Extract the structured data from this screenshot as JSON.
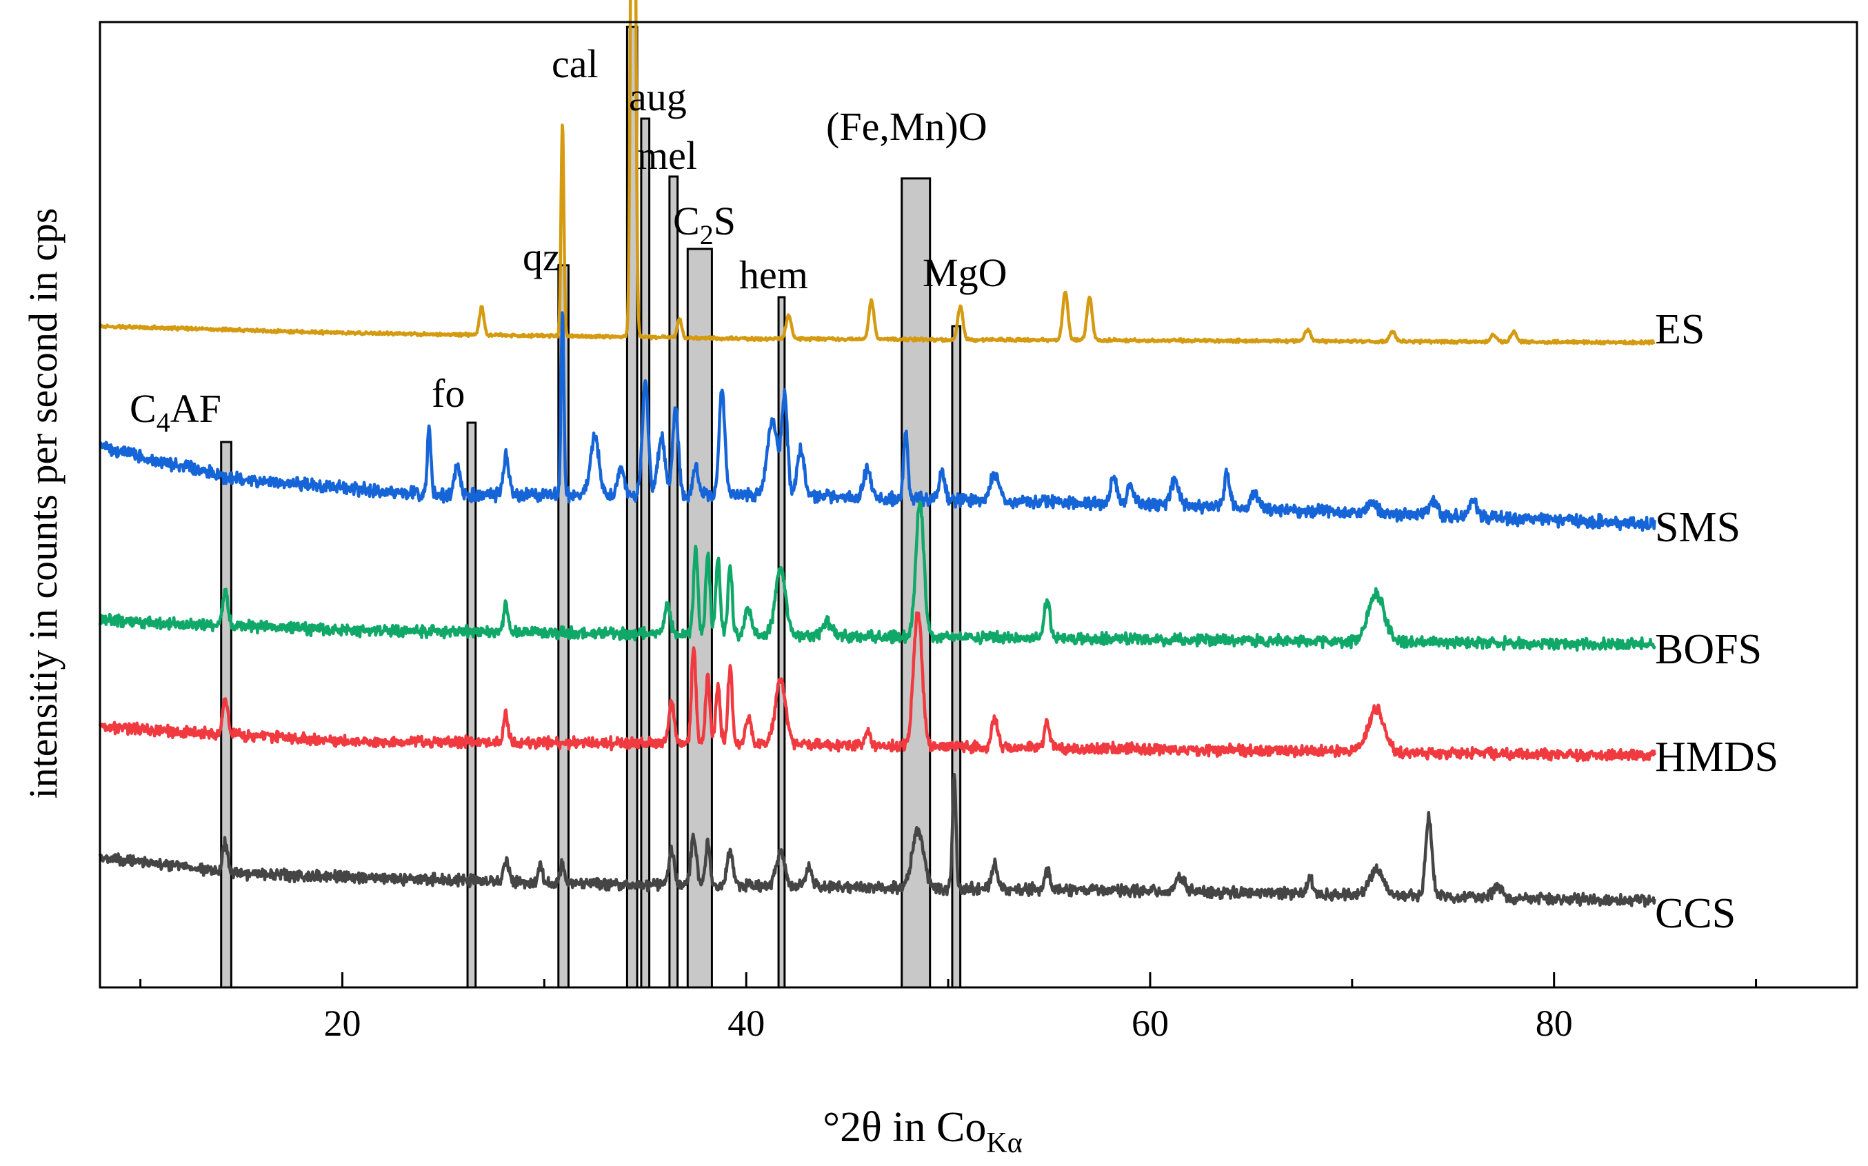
{
  "chart_data": {
    "type": "line",
    "xlabel_main": "°2θ in Co",
    "xlabel_sub": "Kα",
    "ylabel": "intensitiy in counts per second in cps",
    "xlim": [
      8,
      95
    ],
    "x_ticks": [
      20,
      40,
      60,
      80
    ],
    "x_tick_labels": [
      "20",
      "40",
      "60",
      "80"
    ],
    "minor_tick_step": 10,
    "y_axis_ticks": false,
    "series": [
      {
        "name": "ES",
        "color": "#d49a10",
        "offset": 0.66,
        "noise": 0.002,
        "seed": 7,
        "baseline": [
          [
            8,
            0.025
          ],
          [
            20,
            0.018
          ],
          [
            40,
            0.012
          ],
          [
            85,
            0.008
          ]
        ],
        "peaks": [
          [
            26.9,
            0.03,
            0.15
          ],
          [
            30.9,
            0.22,
            0.1
          ],
          [
            34.4,
            0.9,
            0.14
          ],
          [
            36.7,
            0.02,
            0.15
          ],
          [
            42.1,
            0.025,
            0.18
          ],
          [
            46.2,
            0.04,
            0.18
          ],
          [
            50.6,
            0.035,
            0.18
          ],
          [
            55.8,
            0.05,
            0.18
          ],
          [
            57.0,
            0.045,
            0.18
          ],
          [
            67.8,
            0.012,
            0.2
          ],
          [
            72.0,
            0.01,
            0.2
          ],
          [
            77.0,
            0.008,
            0.2
          ],
          [
            78.0,
            0.01,
            0.2
          ]
        ]
      },
      {
        "name": "SMS",
        "color": "#1565d8",
        "offset": 0.48,
        "noise": 0.008,
        "seed": 3,
        "baseline": [
          [
            8,
            0.08
          ],
          [
            15,
            0.045
          ],
          [
            25,
            0.03
          ],
          [
            40,
            0.03
          ],
          [
            60,
            0.02
          ],
          [
            85,
            0.0
          ]
        ],
        "peaks": [
          [
            24.3,
            0.07,
            0.12
          ],
          [
            25.7,
            0.03,
            0.2
          ],
          [
            28.1,
            0.04,
            0.2
          ],
          [
            30.9,
            0.19,
            0.1
          ],
          [
            32.5,
            0.06,
            0.3
          ],
          [
            33.8,
            0.03,
            0.2
          ],
          [
            35.0,
            0.12,
            0.2
          ],
          [
            35.8,
            0.06,
            0.25
          ],
          [
            36.5,
            0.09,
            0.2
          ],
          [
            37.5,
            0.03,
            0.2
          ],
          [
            38.8,
            0.11,
            0.2
          ],
          [
            41.3,
            0.08,
            0.35
          ],
          [
            41.9,
            0.1,
            0.2
          ],
          [
            42.7,
            0.05,
            0.25
          ],
          [
            46.0,
            0.03,
            0.25
          ],
          [
            47.9,
            0.07,
            0.15
          ],
          [
            49.7,
            0.03,
            0.2
          ],
          [
            52.3,
            0.03,
            0.3
          ],
          [
            58.2,
            0.03,
            0.2
          ],
          [
            59.0,
            0.02,
            0.2
          ],
          [
            61.2,
            0.025,
            0.3
          ],
          [
            63.8,
            0.035,
            0.2
          ],
          [
            65.2,
            0.015,
            0.3
          ],
          [
            71.0,
            0.01,
            0.3
          ],
          [
            74.0,
            0.015,
            0.3
          ],
          [
            76.0,
            0.015,
            0.3
          ]
        ]
      },
      {
        "name": "BOFS",
        "color": "#10a868",
        "offset": 0.355,
        "noise": 0.007,
        "seed": 11,
        "baseline": [
          [
            8,
            0.025
          ],
          [
            20,
            0.015
          ],
          [
            40,
            0.01
          ],
          [
            85,
            0.0
          ]
        ],
        "peaks": [
          [
            14.2,
            0.035,
            0.18
          ],
          [
            28.1,
            0.03,
            0.15
          ],
          [
            36.1,
            0.03,
            0.2
          ],
          [
            37.5,
            0.09,
            0.15
          ],
          [
            38.1,
            0.08,
            0.15
          ],
          [
            38.6,
            0.08,
            0.15
          ],
          [
            39.2,
            0.07,
            0.15
          ],
          [
            40.1,
            0.03,
            0.2
          ],
          [
            41.7,
            0.07,
            0.35
          ],
          [
            44.0,
            0.015,
            0.3
          ],
          [
            48.6,
            0.14,
            0.28
          ],
          [
            54.9,
            0.04,
            0.2
          ],
          [
            71.2,
            0.05,
            0.55
          ]
        ]
      },
      {
        "name": "HMDS",
        "color": "#f03a40",
        "offset": 0.24,
        "noise": 0.007,
        "seed": 19,
        "baseline": [
          [
            8,
            0.03
          ],
          [
            20,
            0.015
          ],
          [
            40,
            0.012
          ],
          [
            85,
            0.0
          ]
        ],
        "peaks": [
          [
            14.2,
            0.035,
            0.18
          ],
          [
            28.1,
            0.03,
            0.15
          ],
          [
            36.3,
            0.04,
            0.2
          ],
          [
            37.4,
            0.1,
            0.15
          ],
          [
            38.1,
            0.07,
            0.15
          ],
          [
            38.6,
            0.06,
            0.15
          ],
          [
            39.2,
            0.08,
            0.15
          ],
          [
            40.1,
            0.03,
            0.2
          ],
          [
            41.7,
            0.07,
            0.35
          ],
          [
            46.0,
            0.015,
            0.2
          ],
          [
            48.5,
            0.14,
            0.3
          ],
          [
            52.3,
            0.03,
            0.2
          ],
          [
            54.9,
            0.025,
            0.2
          ],
          [
            71.2,
            0.045,
            0.55
          ]
        ]
      },
      {
        "name": "CCS",
        "color": "#454545",
        "offset": 0.09,
        "noise": 0.007,
        "seed": 29,
        "baseline": [
          [
            8,
            0.045
          ],
          [
            15,
            0.028
          ],
          [
            30,
            0.018
          ],
          [
            60,
            0.01
          ],
          [
            85,
            0.0
          ]
        ],
        "peaks": [
          [
            14.2,
            0.03,
            0.18
          ],
          [
            28.1,
            0.02,
            0.2
          ],
          [
            29.8,
            0.02,
            0.15
          ],
          [
            30.9,
            0.02,
            0.15
          ],
          [
            36.3,
            0.035,
            0.2
          ],
          [
            37.4,
            0.05,
            0.2
          ],
          [
            38.1,
            0.045,
            0.15
          ],
          [
            39.2,
            0.035,
            0.2
          ],
          [
            41.7,
            0.035,
            0.3
          ],
          [
            43.1,
            0.02,
            0.2
          ],
          [
            48.5,
            0.06,
            0.4
          ],
          [
            50.3,
            0.12,
            0.12
          ],
          [
            52.3,
            0.025,
            0.2
          ],
          [
            54.9,
            0.02,
            0.2
          ],
          [
            61.5,
            0.015,
            0.3
          ],
          [
            67.9,
            0.02,
            0.15
          ],
          [
            71.2,
            0.025,
            0.5
          ],
          [
            73.8,
            0.08,
            0.22
          ],
          [
            77.2,
            0.012,
            0.3
          ]
        ]
      }
    ],
    "phase_markers": [
      {
        "label": "C",
        "sub": "4",
        "rest": "AF",
        "x0": 14.0,
        "x1": 14.5,
        "top": 0.565
      },
      {
        "label": "fo",
        "sub": "",
        "rest": "",
        "x0": 26.2,
        "x1": 26.6,
        "top": 0.585
      },
      {
        "label": "qz",
        "sub": "",
        "rest": "",
        "x0": 30.7,
        "x1": 31.2,
        "top": 0.748
      },
      {
        "label": "cal",
        "sub": "",
        "rest": "",
        "x0": 34.1,
        "x1": 34.6,
        "top": 0.995
      },
      {
        "label": "aug",
        "sub": "",
        "rest": "",
        "x0": 34.8,
        "x1": 35.2,
        "top": 0.9
      },
      {
        "label": "mel",
        "sub": "",
        "rest": "",
        "x0": 36.2,
        "x1": 36.6,
        "top": 0.84
      },
      {
        "label": "C",
        "sub": "2",
        "rest": "S",
        "x0": 37.1,
        "x1": 38.3,
        "top": 0.765
      },
      {
        "label": "hem",
        "sub": "",
        "rest": "",
        "x0": 41.6,
        "x1": 41.9,
        "top": 0.715
      },
      {
        "label": "(Fe,Mn)O",
        "sub": "",
        "rest": "",
        "x0": 47.7,
        "x1": 49.1,
        "top": 0.838
      },
      {
        "label": "MgO",
        "sub": "",
        "rest": "",
        "x0": 50.2,
        "x1": 50.6,
        "top": 0.685
      }
    ]
  }
}
